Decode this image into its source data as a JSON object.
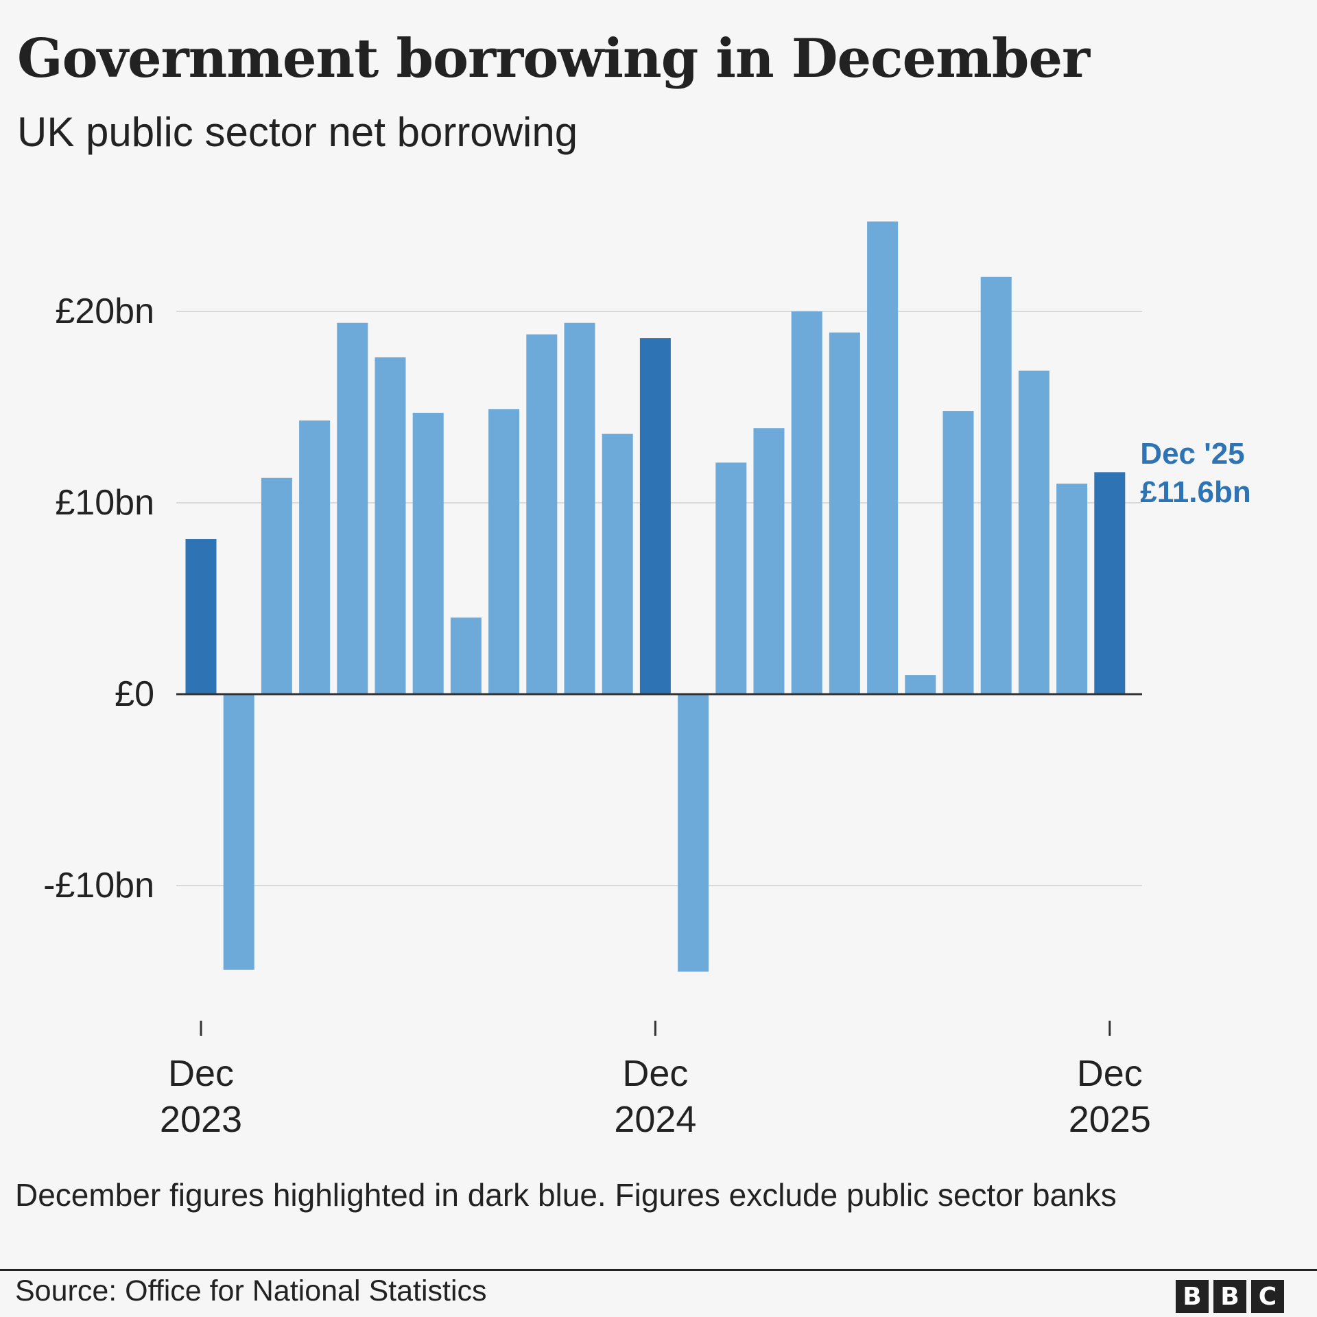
{
  "header": {
    "title": "Government borrowing in December",
    "subtitle": "UK public sector net borrowing"
  },
  "footer": {
    "note": "December figures highlighted in dark blue. Figures exclude public sector banks",
    "source": "Source: Office for National Statistics",
    "logo": [
      "B",
      "B",
      "C"
    ]
  },
  "colors": {
    "highlight": "#2e74b5",
    "regular": "#6eaad9",
    "grid": "#d9d9d9",
    "axis": "#333333",
    "annotation": "#2e74b5"
  },
  "chart_data": {
    "type": "bar",
    "title": "Government borrowing in December",
    "subtitle": "UK public sector net borrowing",
    "ylim": [
      -15,
      25
    ],
    "yticks": [
      {
        "value": 20,
        "label": "£20bn"
      },
      {
        "value": 10,
        "label": "£10bn"
      },
      {
        "value": 0,
        "label": "£0"
      },
      {
        "value": -10,
        "label": "-£10bn"
      }
    ],
    "x": [
      "Dec 2023",
      "Jan 2024",
      "Feb 2024",
      "Mar 2024",
      "Apr 2024",
      "May 2024",
      "Jun 2024",
      "Jul 2024",
      "Aug 2024",
      "Sep 2024",
      "Oct 2024",
      "Nov 2024",
      "Dec 2024",
      "Jan 2025",
      "Feb 2025",
      "Mar 2025",
      "Apr 2025",
      "May 2025",
      "Jun 2025",
      "Jul 2025",
      "Aug 2025",
      "Sep 2025",
      "Oct 2025",
      "Nov 2025",
      "Dec 2025"
    ],
    "values": [
      8.1,
      -14.4,
      11.3,
      14.3,
      19.4,
      17.6,
      14.7,
      4.0,
      14.9,
      18.8,
      19.4,
      13.6,
      18.6,
      -14.5,
      12.1,
      13.9,
      20.0,
      18.9,
      24.7,
      1.0,
      14.8,
      21.8,
      16.9,
      11.0,
      11.6
    ],
    "highlighted": [
      0,
      12,
      24
    ],
    "xtick_labels": [
      {
        "index": 0,
        "month": "Dec",
        "year": "2023"
      },
      {
        "index": 12,
        "month": "Dec",
        "year": "2024"
      },
      {
        "index": 24,
        "month": "Dec",
        "year": "2025"
      }
    ],
    "annotation": {
      "index": 24,
      "line1": "Dec '25",
      "line2": "£11.6bn"
    },
    "grid": true,
    "legend": "none"
  }
}
